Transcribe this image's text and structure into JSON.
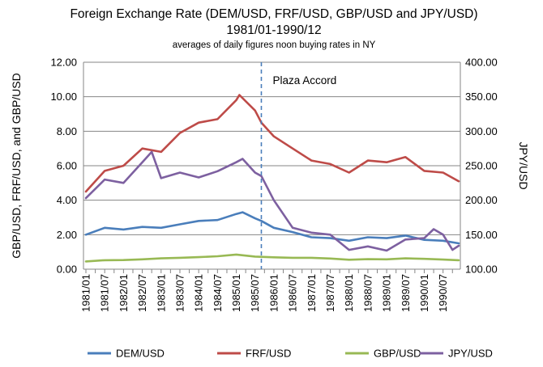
{
  "chart_data": {
    "type": "line",
    "title": "Foreign Exchange Rate (DEM/USD, FRF/USD,  GBP/USD and JPY/USD)",
    "subtitle": "1981/01-1990/12",
    "subtitle2": "averages of daily figures noon buying rates in NY",
    "ylabel_left": "GBP/USD, FRF/USD,  and GBP/USD",
    "ylabel_right": "JPY/USD",
    "ylim_left": [
      0,
      12
    ],
    "ylim_right": [
      100,
      400
    ],
    "yticks_left": [
      "0.00",
      "2.00",
      "4.00",
      "6.00",
      "8.00",
      "10.00",
      "12.00"
    ],
    "yticks_right": [
      "100.00",
      "150.00",
      "200.00",
      "250.00",
      "300.00",
      "350.00",
      "400.00"
    ],
    "xticks": [
      "1981/01",
      "1981/07",
      "1982/01",
      "1982/07",
      "1983/01",
      "1983/07",
      "1984/01",
      "1984/07",
      "1985/01",
      "1985/07",
      "1986/01",
      "1986/07",
      "1987/01",
      "1987/07",
      "1988/01",
      "1988/07",
      "1989/01",
      "1989/07",
      "1990/01",
      "1990/07"
    ],
    "grid": "horizontal",
    "legend_position": "bottom",
    "annotation": {
      "label": "Plaza Accord",
      "x": "1985/09"
    },
    "series": [
      {
        "name": "DEM/USD",
        "axis": "left",
        "color": "#4a7ebb",
        "points": [
          [
            "1981/01",
            2.0
          ],
          [
            "1981/07",
            2.4
          ],
          [
            "1982/01",
            2.3
          ],
          [
            "1982/07",
            2.45
          ],
          [
            "1983/01",
            2.4
          ],
          [
            "1983/07",
            2.6
          ],
          [
            "1984/01",
            2.8
          ],
          [
            "1984/07",
            2.85
          ],
          [
            "1985/01",
            3.2
          ],
          [
            "1985/03",
            3.3
          ],
          [
            "1985/07",
            2.95
          ],
          [
            "1985/09",
            2.8
          ],
          [
            "1986/01",
            2.4
          ],
          [
            "1986/07",
            2.15
          ],
          [
            "1987/01",
            1.85
          ],
          [
            "1987/07",
            1.8
          ],
          [
            "1988/01",
            1.65
          ],
          [
            "1988/07",
            1.85
          ],
          [
            "1989/01",
            1.8
          ],
          [
            "1989/07",
            1.95
          ],
          [
            "1990/01",
            1.7
          ],
          [
            "1990/07",
            1.65
          ],
          [
            "1990/12",
            1.5
          ]
        ]
      },
      {
        "name": "FRF/USD",
        "axis": "left",
        "color": "#be4b48",
        "points": [
          [
            "1981/01",
            4.5
          ],
          [
            "1981/07",
            5.7
          ],
          [
            "1982/01",
            6.0
          ],
          [
            "1982/07",
            7.0
          ],
          [
            "1983/01",
            6.8
          ],
          [
            "1983/07",
            7.9
          ],
          [
            "1984/01",
            8.5
          ],
          [
            "1984/07",
            8.7
          ],
          [
            "1985/01",
            9.8
          ],
          [
            "1985/02",
            10.1
          ],
          [
            "1985/07",
            9.2
          ],
          [
            "1985/09",
            8.5
          ],
          [
            "1986/01",
            7.7
          ],
          [
            "1986/07",
            7.0
          ],
          [
            "1987/01",
            6.3
          ],
          [
            "1987/07",
            6.1
          ],
          [
            "1988/01",
            5.6
          ],
          [
            "1988/07",
            6.3
          ],
          [
            "1989/01",
            6.2
          ],
          [
            "1989/07",
            6.5
          ],
          [
            "1990/01",
            5.7
          ],
          [
            "1990/07",
            5.6
          ],
          [
            "1990/12",
            5.1
          ]
        ]
      },
      {
        "name": "GBP/USD",
        "axis": "left",
        "color": "#98b954",
        "points": [
          [
            "1981/01",
            0.45
          ],
          [
            "1981/07",
            0.52
          ],
          [
            "1982/01",
            0.53
          ],
          [
            "1982/07",
            0.57
          ],
          [
            "1983/01",
            0.63
          ],
          [
            "1983/07",
            0.66
          ],
          [
            "1984/01",
            0.7
          ],
          [
            "1984/07",
            0.75
          ],
          [
            "1985/01",
            0.85
          ],
          [
            "1985/07",
            0.73
          ],
          [
            "1986/01",
            0.69
          ],
          [
            "1986/07",
            0.66
          ],
          [
            "1987/01",
            0.66
          ],
          [
            "1987/07",
            0.62
          ],
          [
            "1988/01",
            0.55
          ],
          [
            "1988/07",
            0.58
          ],
          [
            "1989/01",
            0.57
          ],
          [
            "1989/07",
            0.63
          ],
          [
            "1990/01",
            0.6
          ],
          [
            "1990/07",
            0.56
          ],
          [
            "1990/12",
            0.52
          ]
        ]
      },
      {
        "name": "JPY/USD",
        "axis": "right",
        "color": "#7d60a0",
        "points": [
          [
            "1981/01",
            203
          ],
          [
            "1981/07",
            230
          ],
          [
            "1982/01",
            225
          ],
          [
            "1982/07",
            255
          ],
          [
            "1982/10",
            270
          ],
          [
            "1983/01",
            232
          ],
          [
            "1983/07",
            240
          ],
          [
            "1984/01",
            233
          ],
          [
            "1984/07",
            242
          ],
          [
            "1985/01",
            255
          ],
          [
            "1985/03",
            260
          ],
          [
            "1985/07",
            240
          ],
          [
            "1985/09",
            235
          ],
          [
            "1986/01",
            200
          ],
          [
            "1986/07",
            160
          ],
          [
            "1987/01",
            153
          ],
          [
            "1987/07",
            150
          ],
          [
            "1988/01",
            128
          ],
          [
            "1988/07",
            133
          ],
          [
            "1989/01",
            127
          ],
          [
            "1989/07",
            143
          ],
          [
            "1990/01",
            145
          ],
          [
            "1990/04",
            158
          ],
          [
            "1990/07",
            150
          ],
          [
            "1990/10",
            128
          ],
          [
            "1990/12",
            134
          ]
        ]
      }
    ]
  }
}
